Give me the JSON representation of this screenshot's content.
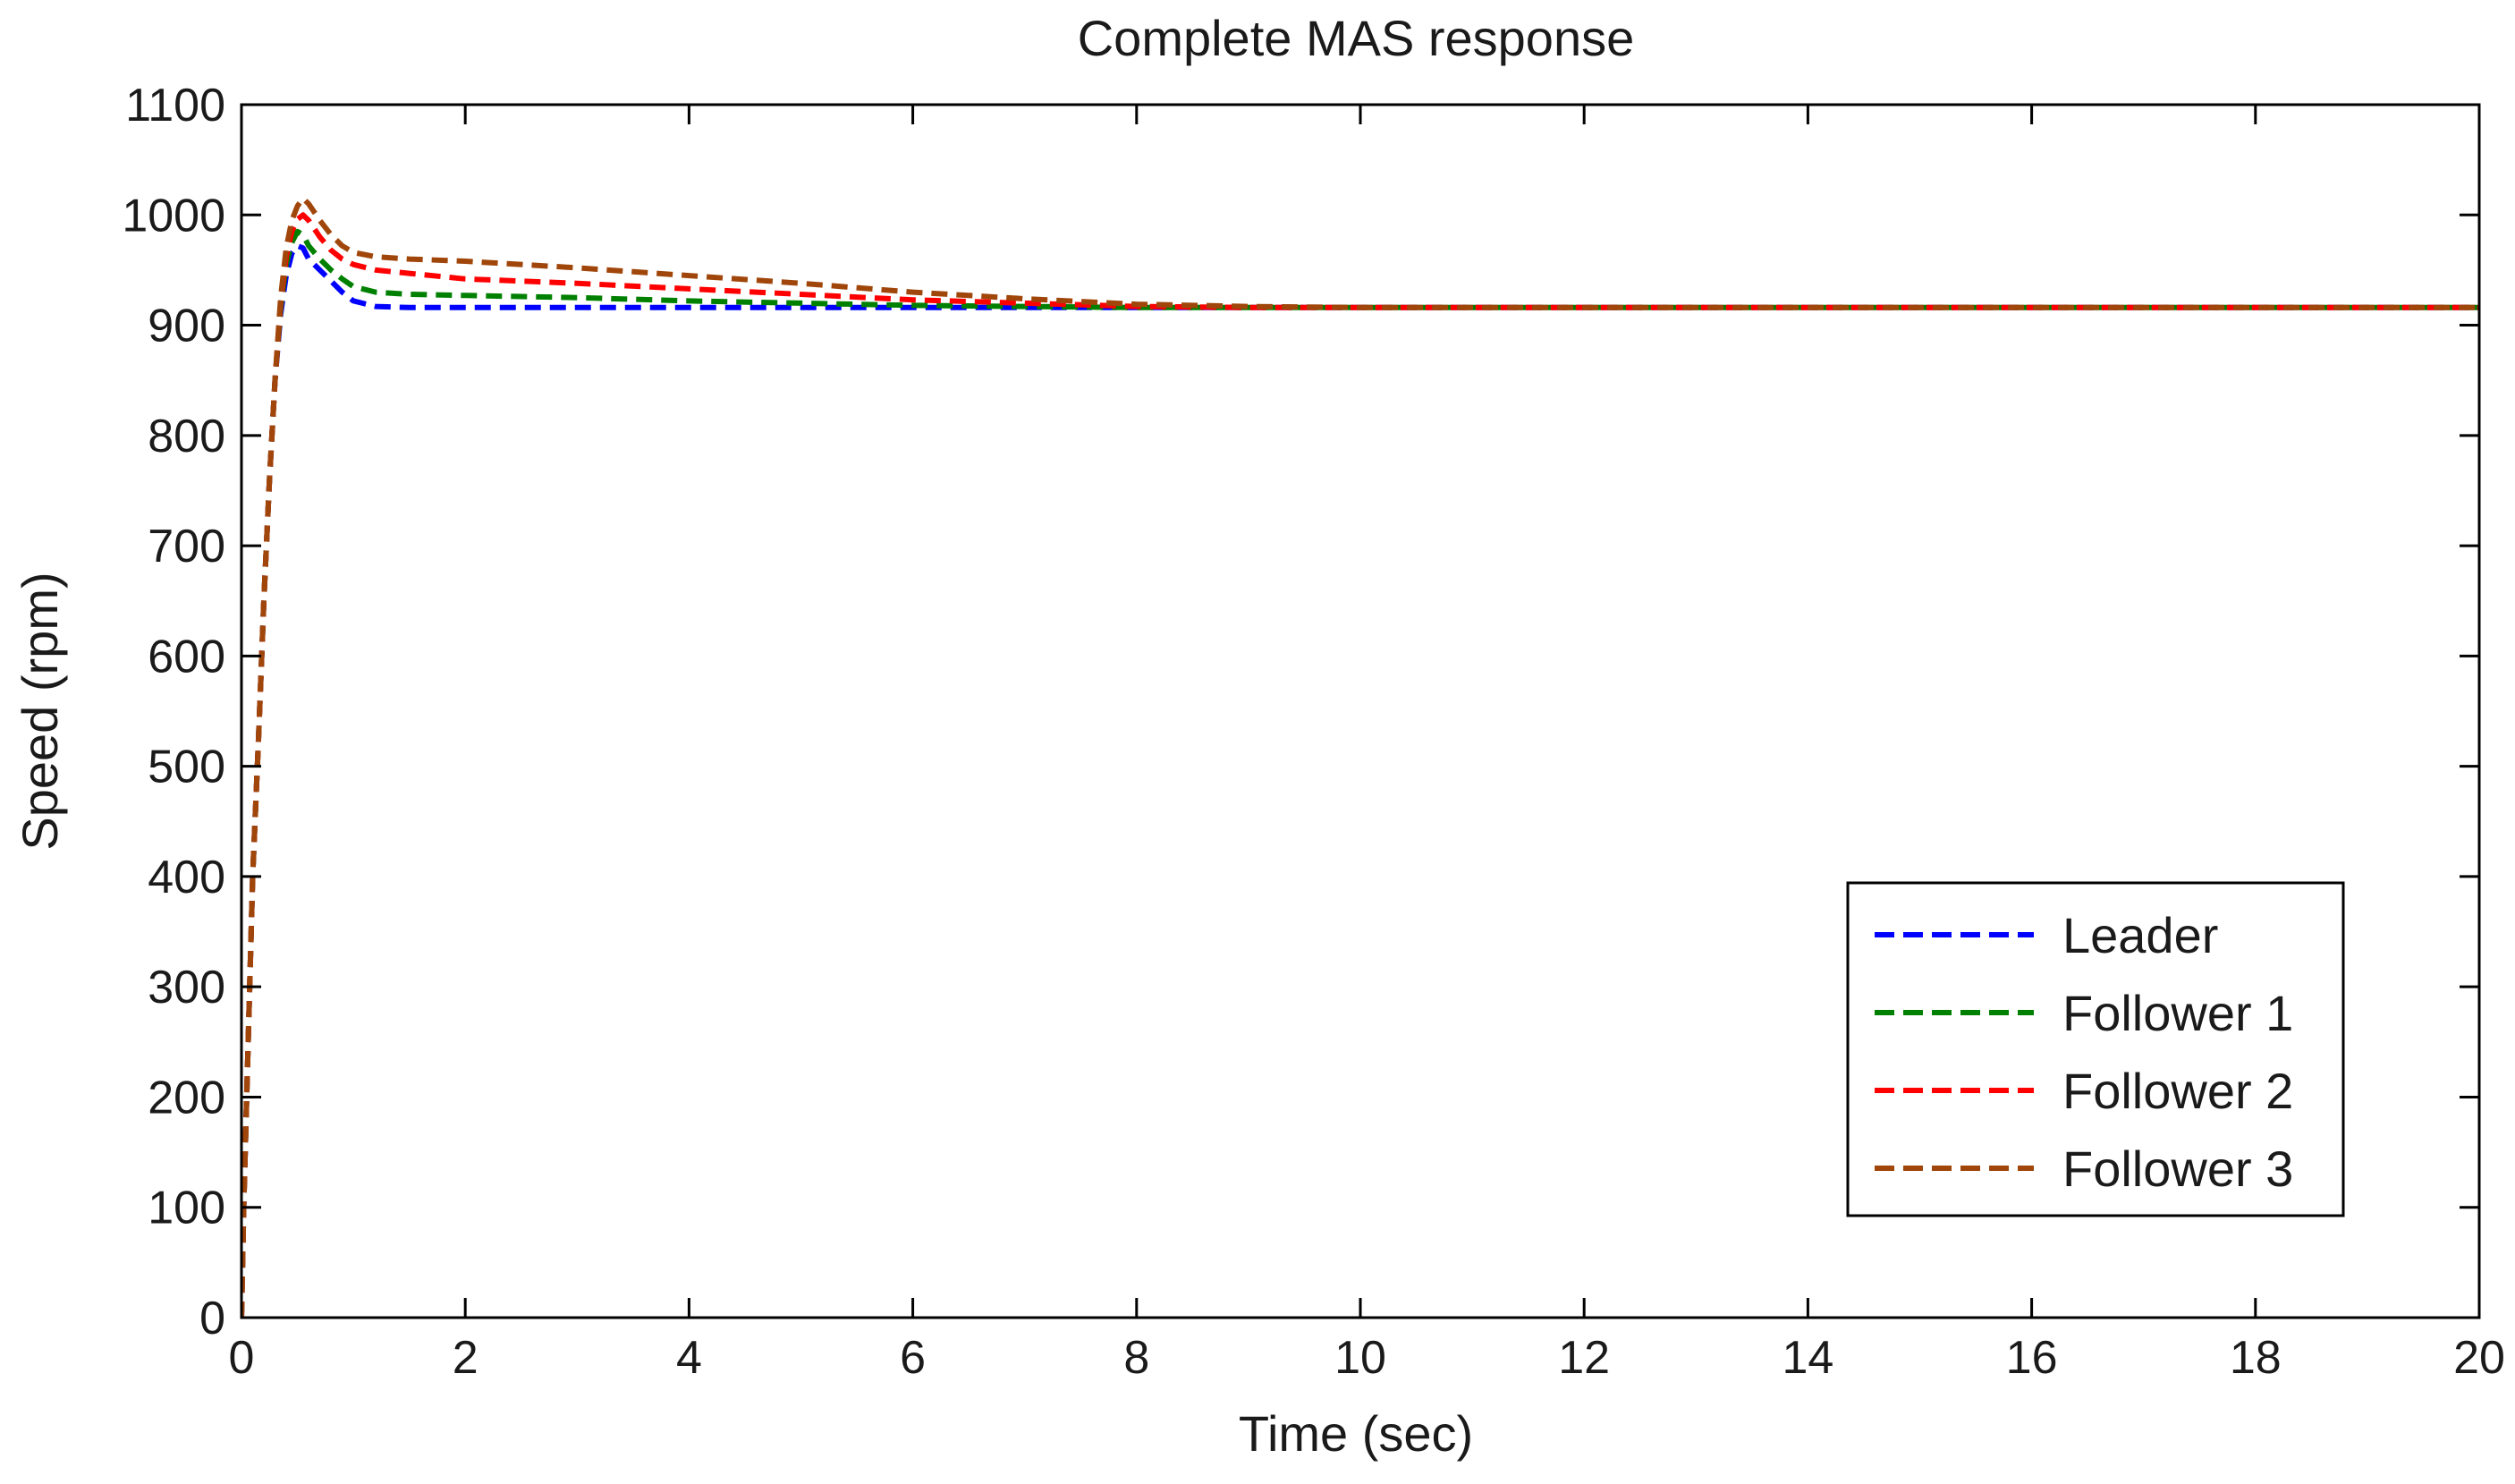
{
  "chart_data": {
    "type": "line",
    "title": "Complete MAS response",
    "xlabel": "Time (sec)",
    "ylabel": "Speed (rpm)",
    "xlim": [
      0,
      20
    ],
    "ylim": [
      0,
      1100
    ],
    "xticks": [
      "0",
      "2",
      "4",
      "6",
      "8",
      "10",
      "12",
      "14",
      "16",
      "18",
      "20"
    ],
    "yticks": [
      "0",
      "100",
      "200",
      "300",
      "400",
      "500",
      "600",
      "700",
      "800",
      "900",
      "1000",
      "1100"
    ],
    "grid": false,
    "legend_position": "lower-right",
    "line_style": "dashed",
    "series": [
      {
        "name": "Leader",
        "color": "#0000ff",
        "points": [
          [
            0,
            0
          ],
          [
            0.02,
            100
          ],
          [
            0.06,
            250
          ],
          [
            0.1,
            400
          ],
          [
            0.15,
            520
          ],
          [
            0.2,
            650
          ],
          [
            0.25,
            760
          ],
          [
            0.3,
            850
          ],
          [
            0.35,
            910
          ],
          [
            0.4,
            945
          ],
          [
            0.45,
            965
          ],
          [
            0.5,
            972
          ],
          [
            0.55,
            970
          ],
          [
            0.6,
            960
          ],
          [
            0.7,
            950
          ],
          [
            0.8,
            940
          ],
          [
            0.9,
            930
          ],
          [
            1.0,
            922
          ],
          [
            1.2,
            917
          ],
          [
            1.5,
            916
          ],
          [
            2,
            916
          ],
          [
            4,
            916
          ],
          [
            6,
            916
          ],
          [
            8,
            916
          ],
          [
            10,
            916
          ],
          [
            12,
            916
          ],
          [
            14,
            916
          ],
          [
            16,
            916
          ],
          [
            18,
            916
          ],
          [
            20,
            916
          ]
        ]
      },
      {
        "name": "Follower 1",
        "color": "#008000",
        "points": [
          [
            0,
            0
          ],
          [
            0.02,
            100
          ],
          [
            0.06,
            250
          ],
          [
            0.1,
            400
          ],
          [
            0.15,
            520
          ],
          [
            0.2,
            650
          ],
          [
            0.25,
            760
          ],
          [
            0.3,
            850
          ],
          [
            0.35,
            915
          ],
          [
            0.4,
            955
          ],
          [
            0.45,
            975
          ],
          [
            0.5,
            985
          ],
          [
            0.55,
            982
          ],
          [
            0.6,
            972
          ],
          [
            0.7,
            960
          ],
          [
            0.8,
            950
          ],
          [
            0.9,
            942
          ],
          [
            1.0,
            935
          ],
          [
            1.2,
            930
          ],
          [
            1.5,
            928
          ],
          [
            2,
            927
          ],
          [
            3,
            925
          ],
          [
            4,
            922
          ],
          [
            5,
            920
          ],
          [
            6,
            918
          ],
          [
            7,
            917
          ],
          [
            8,
            916
          ],
          [
            10,
            916
          ],
          [
            12,
            916
          ],
          [
            14,
            916
          ],
          [
            16,
            916
          ],
          [
            18,
            916
          ],
          [
            20,
            916
          ]
        ]
      },
      {
        "name": "Follower 2",
        "color": "#ff0000",
        "points": [
          [
            0,
            0
          ],
          [
            0.02,
            100
          ],
          [
            0.06,
            250
          ],
          [
            0.1,
            400
          ],
          [
            0.15,
            520
          ],
          [
            0.2,
            650
          ],
          [
            0.25,
            760
          ],
          [
            0.3,
            850
          ],
          [
            0.35,
            920
          ],
          [
            0.4,
            962
          ],
          [
            0.45,
            985
          ],
          [
            0.5,
            996
          ],
          [
            0.55,
            1000
          ],
          [
            0.6,
            995
          ],
          [
            0.7,
            980
          ],
          [
            0.8,
            968
          ],
          [
            0.9,
            960
          ],
          [
            1.0,
            955
          ],
          [
            1.2,
            950
          ],
          [
            1.5,
            947
          ],
          [
            2,
            942
          ],
          [
            3,
            938
          ],
          [
            4,
            933
          ],
          [
            5,
            928
          ],
          [
            6,
            923
          ],
          [
            7,
            920
          ],
          [
            8,
            917
          ],
          [
            9,
            916
          ],
          [
            10,
            916
          ],
          [
            12,
            916
          ],
          [
            14,
            916
          ],
          [
            16,
            916
          ],
          [
            18,
            916
          ],
          [
            20,
            916
          ]
        ]
      },
      {
        "name": "Follower 3",
        "color": "#a0460a",
        "points": [
          [
            0,
            0
          ],
          [
            0.02,
            100
          ],
          [
            0.06,
            250
          ],
          [
            0.1,
            400
          ],
          [
            0.15,
            520
          ],
          [
            0.2,
            650
          ],
          [
            0.25,
            760
          ],
          [
            0.3,
            850
          ],
          [
            0.35,
            925
          ],
          [
            0.4,
            970
          ],
          [
            0.45,
            995
          ],
          [
            0.5,
            1008
          ],
          [
            0.55,
            1015
          ],
          [
            0.6,
            1010
          ],
          [
            0.7,
            995
          ],
          [
            0.8,
            982
          ],
          [
            0.9,
            972
          ],
          [
            1.0,
            966
          ],
          [
            1.2,
            962
          ],
          [
            1.5,
            960
          ],
          [
            2,
            958
          ],
          [
            3,
            952
          ],
          [
            4,
            945
          ],
          [
            5,
            938
          ],
          [
            6,
            930
          ],
          [
            7,
            924
          ],
          [
            8,
            919
          ],
          [
            9,
            917
          ],
          [
            10,
            916
          ],
          [
            12,
            916
          ],
          [
            14,
            916
          ],
          [
            16,
            916
          ],
          [
            18,
            916
          ],
          [
            20,
            916
          ]
        ]
      }
    ]
  }
}
